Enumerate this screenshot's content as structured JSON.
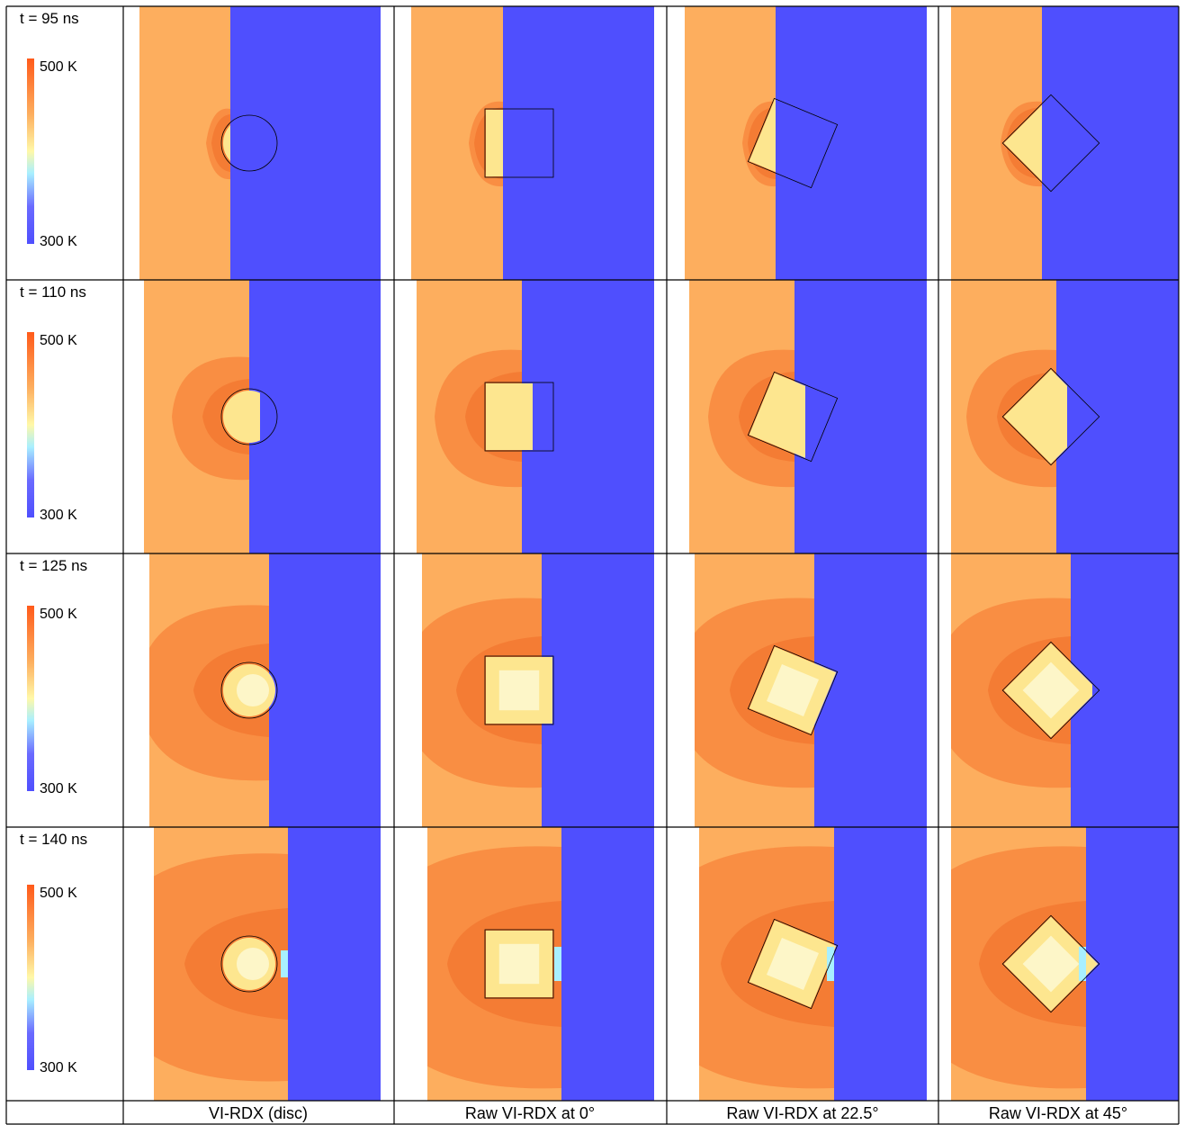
{
  "colors": {
    "hot": "#ff6a1f",
    "warm": "#fdae5e",
    "mid": "#f98e43",
    "light": "#fde68f",
    "pale": "#fdf6c8",
    "cold": "#4f4ffe",
    "cyan": "#a8efff",
    "line": "#000000"
  },
  "colorbar": {
    "max_label": "500 K",
    "min_label": "300 K"
  },
  "rows": [
    {
      "time": "t = 95 ns"
    },
    {
      "time": "t = 110 ns"
    },
    {
      "time": "t = 125 ns"
    },
    {
      "time": "t = 140 ns"
    }
  ],
  "columns": [
    {
      "label": "VI-RDX (disc)",
      "shape": "disc",
      "angle": 0
    },
    {
      "label": "Raw VI-RDX at 0°",
      "shape": "square",
      "angle": 0
    },
    {
      "label": "Raw VI-RDX at 22.5°",
      "shape": "square",
      "angle": 22.5
    },
    {
      "label": "Raw VI-RDX at 45°",
      "shape": "square",
      "angle": 45
    }
  ]
}
